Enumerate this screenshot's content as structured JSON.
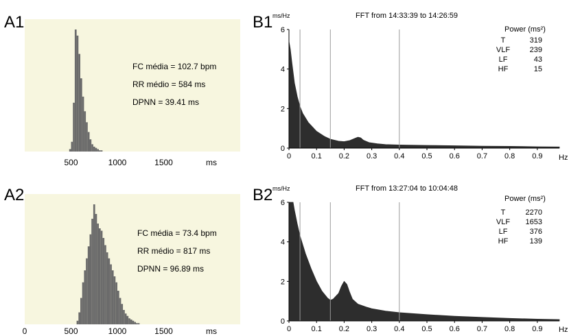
{
  "panels": {
    "A1": {
      "label": "A1",
      "stats": [
        "FC média = 102.7 bpm",
        "RR médio = 584 ms",
        "DPNN = 39.41 ms"
      ],
      "xunit": "ms"
    },
    "A2": {
      "label": "A2",
      "stats": [
        "FC média = 73.4 bpm",
        "RR médio = 817 ms",
        "DPNN = 96.89 ms"
      ],
      "xunit": "ms"
    },
    "B1": {
      "label": "B1",
      "unit": "ms/Hz",
      "title": "FFT from 14:33:39 to 14:26:59",
      "xunit": "Hz",
      "power_header": "Power (ms²)",
      "power": [
        [
          "T",
          "319"
        ],
        [
          "VLF",
          "239"
        ],
        [
          "LF",
          "43"
        ],
        [
          "HF",
          "15"
        ]
      ]
    },
    "B2": {
      "label": "B2",
      "unit": "ms/Hz",
      "title": "FFT from 13:27:04 to 10:04:48",
      "xunit": "Hz",
      "power_header": "Power (ms²)",
      "power": [
        [
          "T",
          "2270"
        ],
        [
          "VLF",
          "1653"
        ],
        [
          "LF",
          "376"
        ],
        [
          "HF",
          "139"
        ]
      ]
    }
  },
  "colors": {
    "histogram_bg": "#f7f6df",
    "histogram_fill": "#6b6b6b",
    "spectrum_fill": "#2d2d2d",
    "band_line": "#9a9a9a"
  },
  "chart_data": [
    {
      "id": "A1",
      "type": "histogram",
      "xlabel": "ms",
      "xlim": [
        0,
        2000
      ],
      "xticks": [
        500,
        1000,
        1500
      ],
      "x": [
        480,
        500,
        520,
        540,
        560,
        580,
        600,
        620,
        640,
        660,
        680,
        700,
        720,
        740,
        760,
        780,
        800,
        820
      ],
      "values": [
        2,
        8,
        40,
        100,
        95,
        80,
        60,
        45,
        33,
        24,
        16,
        10,
        6,
        4,
        3,
        2,
        1,
        1
      ]
    },
    {
      "id": "A2",
      "type": "histogram",
      "xlabel": "ms",
      "xlim": [
        0,
        2000
      ],
      "xticks": [
        0,
        500,
        1000,
        1500
      ],
      "x": [
        560,
        580,
        600,
        620,
        640,
        660,
        680,
        700,
        720,
        740,
        760,
        780,
        800,
        820,
        840,
        860,
        880,
        900,
        920,
        940,
        960,
        980,
        1000,
        1020,
        1040,
        1060,
        1080,
        1100,
        1120,
        1140,
        1160,
        1180,
        1200,
        1220
      ],
      "values": [
        3,
        10,
        22,
        35,
        45,
        55,
        65,
        75,
        88,
        100,
        92,
        84,
        80,
        78,
        72,
        66,
        60,
        55,
        50,
        45,
        40,
        35,
        28,
        22,
        17,
        12,
        9,
        7,
        5,
        4,
        3,
        2,
        1,
        1
      ]
    },
    {
      "id": "B1",
      "type": "area",
      "xlabel": "Hz",
      "ylabel": "ms/Hz",
      "xlim": [
        0,
        0.98
      ],
      "ylim": [
        0,
        6
      ],
      "xticks": [
        0,
        0.1,
        0.2,
        0.3,
        0.4,
        0.5,
        0.6,
        0.7,
        0.8,
        0.9
      ],
      "yticks": [
        0,
        2,
        4,
        6
      ],
      "bands": [
        0.04,
        0.15,
        0.4
      ],
      "x": [
        0,
        0.005,
        0.01,
        0.02,
        0.03,
        0.04,
        0.05,
        0.07,
        0.1,
        0.13,
        0.15,
        0.18,
        0.2,
        0.22,
        0.24,
        0.25,
        0.26,
        0.27,
        0.29,
        0.32,
        0.35,
        0.4,
        0.5,
        0.6,
        0.7,
        0.8,
        0.9,
        0.98
      ],
      "values": [
        5.4,
        5.0,
        4.4,
        3.3,
        2.6,
        2.1,
        1.75,
        1.3,
        0.85,
        0.58,
        0.45,
        0.35,
        0.33,
        0.38,
        0.5,
        0.55,
        0.52,
        0.4,
        0.28,
        0.22,
        0.18,
        0.16,
        0.14,
        0.12,
        0.1,
        0.09,
        0.07,
        0.06
      ]
    },
    {
      "id": "B2",
      "type": "area",
      "xlabel": "Hz",
      "ylabel": "ms/Hz",
      "xlim": [
        0,
        0.98
      ],
      "ylim": [
        0,
        6
      ],
      "xticks": [
        0,
        0.1,
        0.2,
        0.3,
        0.4,
        0.5,
        0.6,
        0.7,
        0.8,
        0.9
      ],
      "yticks": [
        0,
        2,
        4,
        6
      ],
      "bands": [
        0.04,
        0.15,
        0.4
      ],
      "x": [
        0,
        0.01,
        0.015,
        0.02,
        0.03,
        0.04,
        0.06,
        0.08,
        0.1,
        0.12,
        0.14,
        0.15,
        0.16,
        0.18,
        0.19,
        0.2,
        0.21,
        0.22,
        0.23,
        0.25,
        0.28,
        0.3,
        0.35,
        0.4,
        0.5,
        0.6,
        0.7,
        0.8,
        0.9,
        0.98
      ],
      "values": [
        6,
        6,
        6,
        5.6,
        4.9,
        4.3,
        3.4,
        2.65,
        2.0,
        1.5,
        1.15,
        1.05,
        1.1,
        1.4,
        1.75,
        2.0,
        1.85,
        1.45,
        1.1,
        0.85,
        0.7,
        0.62,
        0.5,
        0.42,
        0.32,
        0.24,
        0.18,
        0.13,
        0.09,
        0.07
      ]
    }
  ]
}
